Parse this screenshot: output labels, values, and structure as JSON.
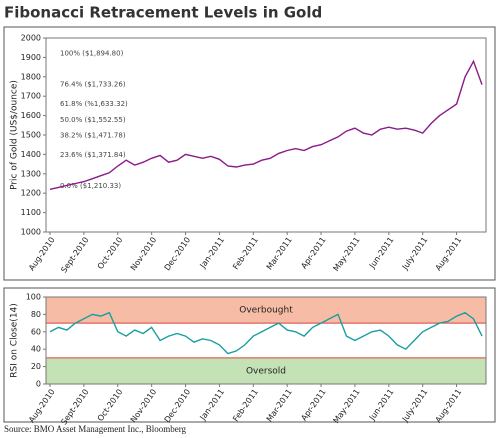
{
  "title": "Fibonacci Retracement Levels in Gold",
  "source": "Source: BMO Asset Management Inc., Bloomberg",
  "chart_data": [
    {
      "type": "line",
      "ylabel": "Pric of Gold (US$/ounce)",
      "categories": [
        "Aug-2010",
        null,
        null,
        null,
        "Sept-2010",
        null,
        null,
        null,
        "Oct-2010",
        null,
        null,
        null,
        "Nov-2010",
        null,
        null,
        null,
        "Dec-2010",
        null,
        null,
        null,
        "Jan-2011",
        null,
        null,
        null,
        "Feb-2011",
        null,
        null,
        null,
        "Mar-2011",
        null,
        null,
        null,
        "Apr-2011",
        null,
        null,
        null,
        "May-2011",
        null,
        null,
        null,
        "Jun-2011",
        null,
        null,
        null,
        "July-2011",
        null,
        null,
        null,
        "Aug-2011",
        null,
        null,
        null
      ],
      "series": [
        {
          "color": "#8b1a8b",
          "values": [
            1220,
            1230,
            1240,
            1250,
            1260,
            1275,
            1290,
            1305,
            1340,
            1370,
            1345,
            1360,
            1380,
            1395,
            1360,
            1370,
            1400,
            1390,
            1380,
            1390,
            1375,
            1340,
            1335,
            1345,
            1350,
            1370,
            1380,
            1405,
            1420,
            1430,
            1420,
            1440,
            1450,
            1470,
            1490,
            1520,
            1535,
            1510,
            1500,
            1530,
            1540,
            1530,
            1535,
            1525,
            1510,
            1560,
            1600,
            1630,
            1660,
            1800,
            1880,
            1760
          ]
        }
      ],
      "ylim": [
        1000,
        2000
      ],
      "yticks": [
        1000,
        1100,
        1200,
        1300,
        1400,
        1500,
        1600,
        1700,
        1800,
        1900,
        2000
      ],
      "annotations": [
        {
          "value": 1894.8,
          "label": "100% ($1,894.80)"
        },
        {
          "value": 1733.26,
          "label": "76.4% ($1,733.26)"
        },
        {
          "value": 1633.32,
          "label": "61.8% (%1,633.32)"
        },
        {
          "value": 1552.55,
          "label": "50.0% ($1,552.55)"
        },
        {
          "value": 1471.78,
          "label": "38.2% ($1,471.78)"
        },
        {
          "value": 1371.84,
          "label": "23.6% ($1,371.84)"
        },
        {
          "value": 1210.33,
          "label": "0.0% ($1,210.33)"
        }
      ]
    },
    {
      "type": "line",
      "ylabel": "RSI on Close(14)",
      "categories": [
        "Aug-2010",
        null,
        null,
        null,
        "Sept-2010",
        null,
        null,
        null,
        "Oct-2010",
        null,
        null,
        null,
        "Nov-2010",
        null,
        null,
        null,
        "Dec-2010",
        null,
        null,
        null,
        "Jan-2011",
        null,
        null,
        null,
        "Feb-2011",
        null,
        null,
        null,
        "Mar-2011",
        null,
        null,
        null,
        "Apr-2011",
        null,
        null,
        null,
        "May-2011",
        null,
        null,
        null,
        "Jun-2011",
        null,
        null,
        null,
        "July-2011",
        null,
        null,
        null,
        "Aug-2011",
        null,
        null,
        null
      ],
      "series": [
        {
          "color": "#1a9ea0",
          "values": [
            60,
            65,
            62,
            70,
            75,
            80,
            78,
            82,
            60,
            55,
            62,
            58,
            65,
            50,
            55,
            58,
            55,
            48,
            52,
            50,
            45,
            35,
            38,
            45,
            55,
            60,
            65,
            70,
            62,
            60,
            55,
            65,
            70,
            75,
            80,
            55,
            50,
            55,
            60,
            62,
            55,
            45,
            40,
            50,
            60,
            65,
            70,
            72,
            78,
            82,
            75,
            55
          ]
        }
      ],
      "ylim": [
        0,
        100
      ],
      "yticks": [
        0,
        20,
        40,
        60,
        80,
        100
      ],
      "bands": [
        {
          "from": 70,
          "to": 100,
          "label": "Overbought",
          "color": "#f7bca6"
        },
        {
          "from": 0,
          "to": 30,
          "label": "Oversold",
          "color": "#c4e2b5"
        }
      ]
    }
  ]
}
